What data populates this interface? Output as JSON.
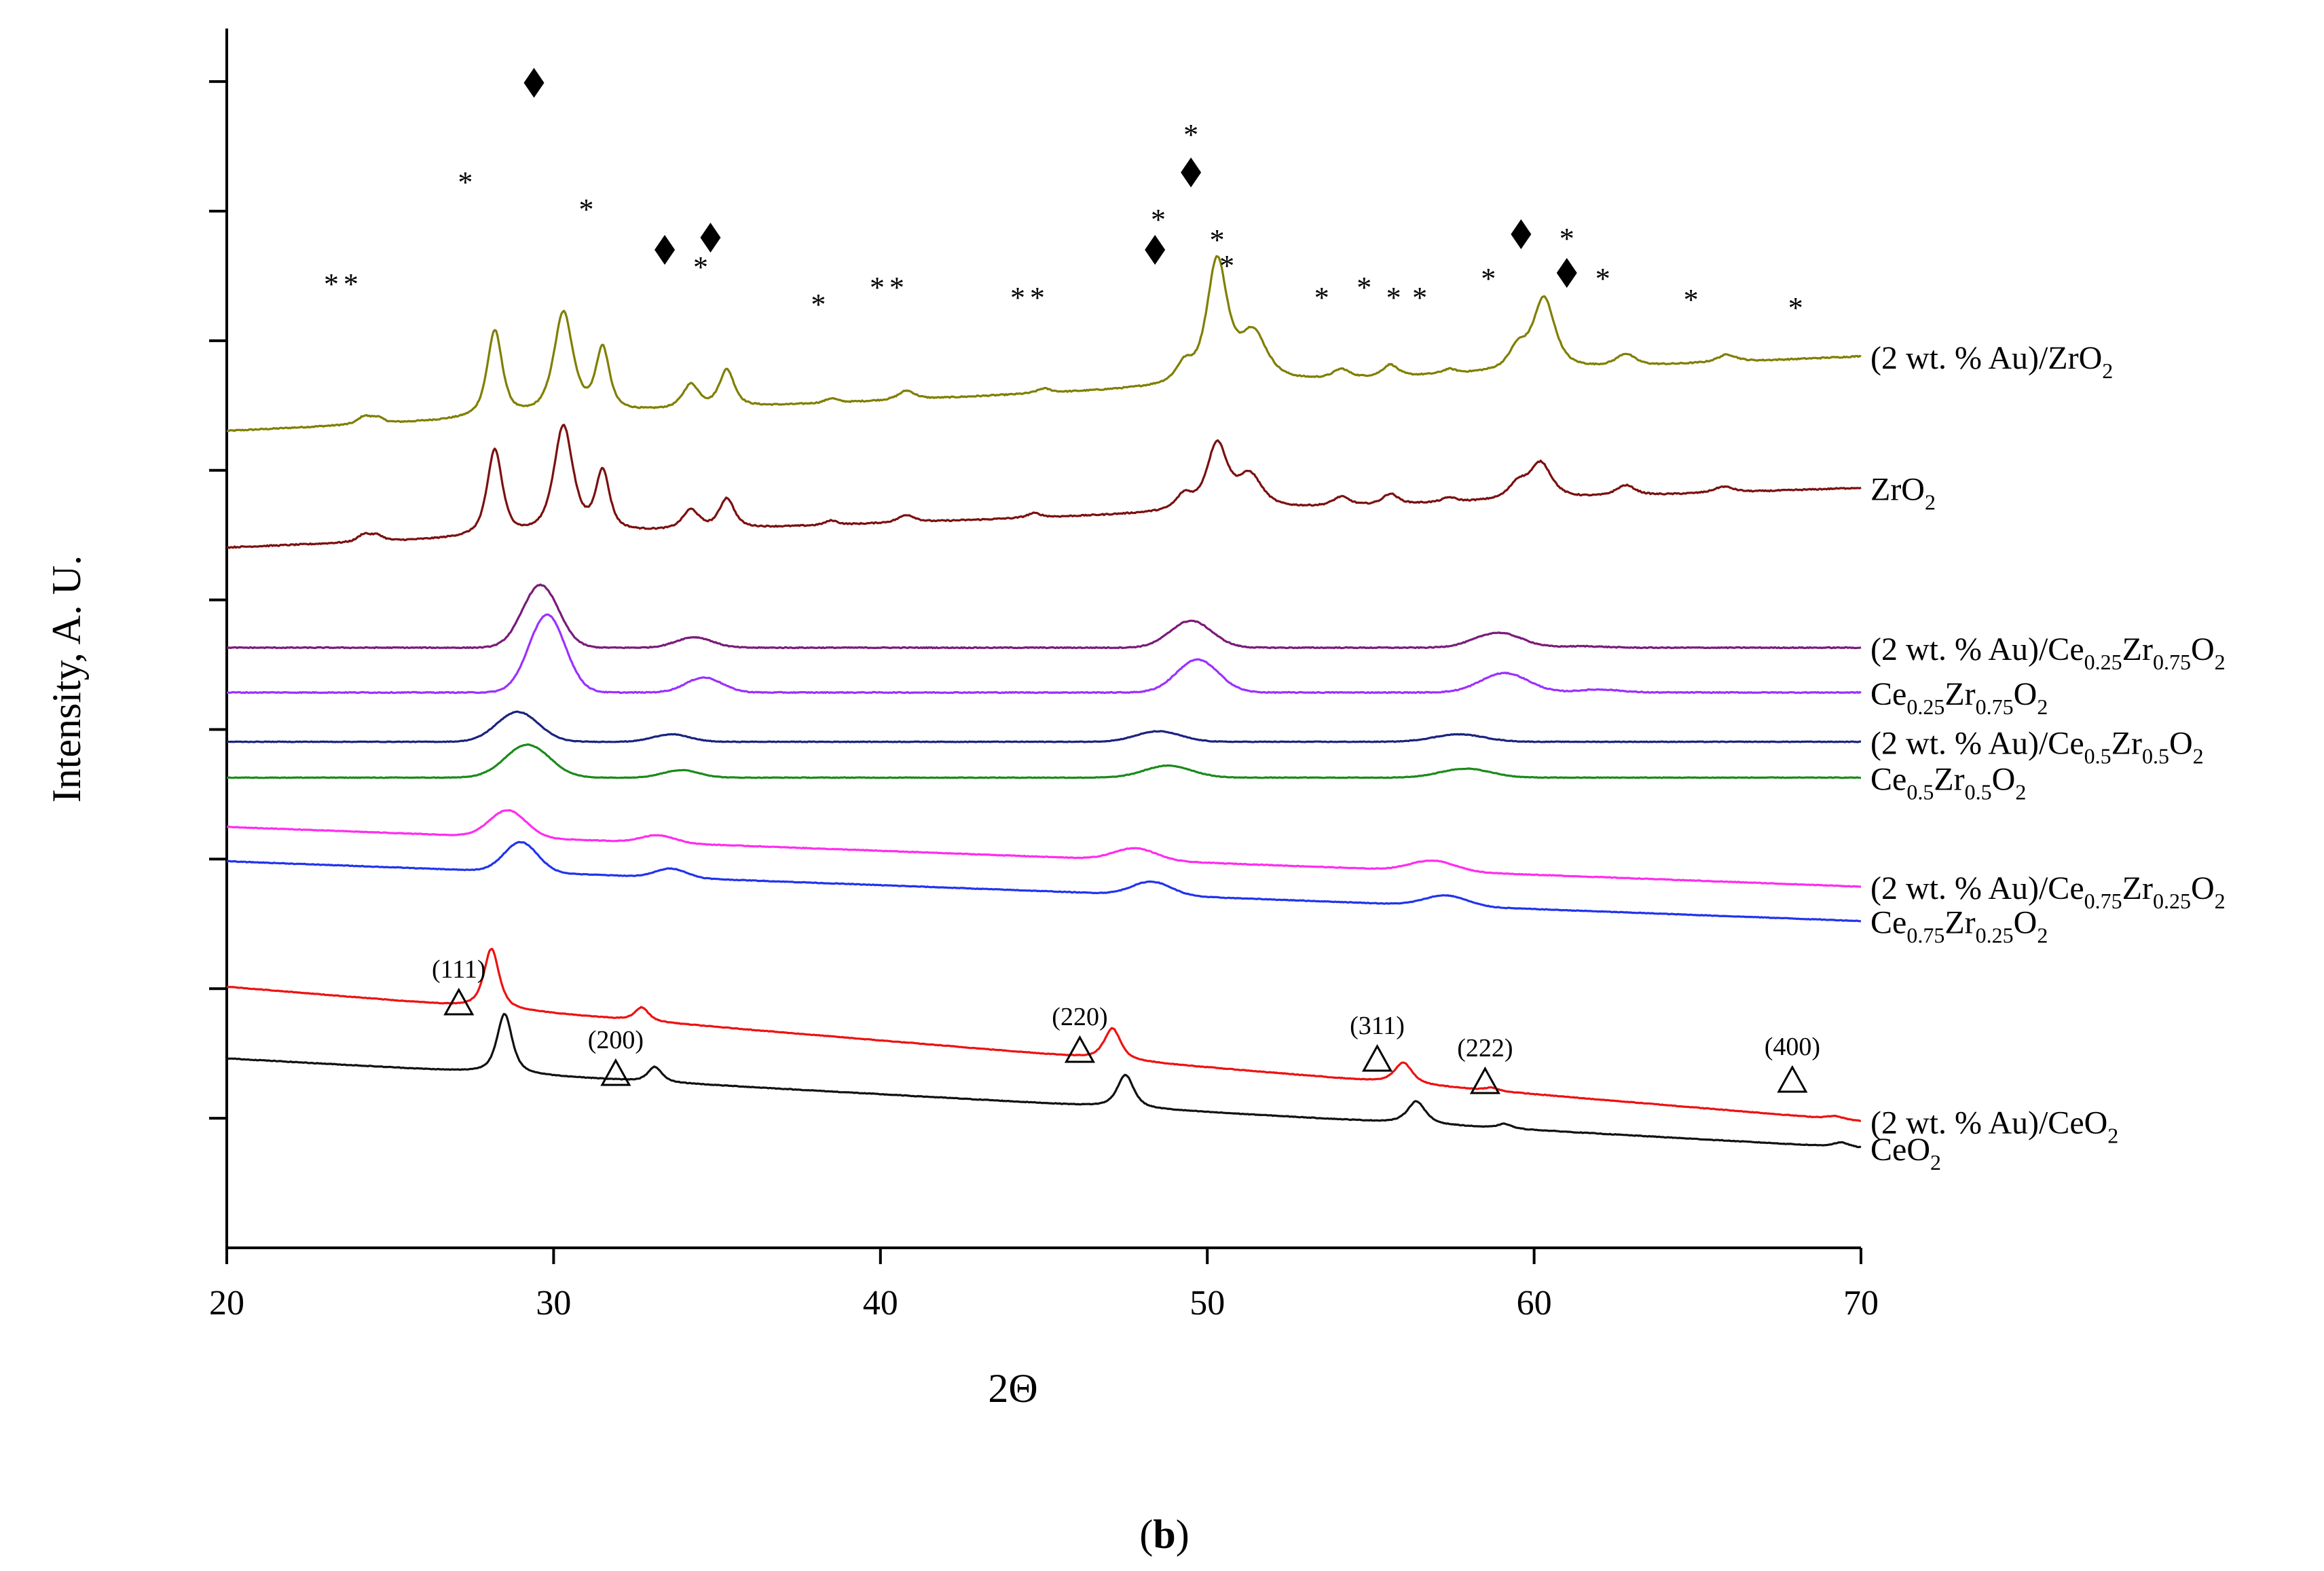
{
  "chart_data": {
    "type": "line",
    "title": "",
    "xlabel": "2Θ",
    "ylabel": "Intensity, A. U.",
    "xlim": [
      20,
      70
    ],
    "x_ticks": [
      20,
      30,
      40,
      50,
      60,
      70
    ],
    "y_tick_count": 9,
    "legend": "labels at right end of each curve",
    "panel_label": "b",
    "series": [
      {
        "name": "(2 wt. % Au)/ZrO2",
        "label": {
          "prefix": "(2 wt. % Au)/ZrO",
          "parts": [
            [
              "2",
              "sub"
            ]
          ]
        },
        "color": "#7f7f00",
        "offset": 1.75,
        "slope": 0.0005,
        "noise": 0.004,
        "sharp": true,
        "peaks": [
          [
            24.2,
            0.05,
            0.45
          ],
          [
            24.6,
            0.04,
            0.45
          ],
          [
            28.2,
            0.58,
            0.55
          ],
          [
            30.3,
            0.68,
            0.7
          ],
          [
            31.5,
            0.42,
            0.5
          ],
          [
            34.2,
            0.16,
            0.6
          ],
          [
            35.3,
            0.25,
            0.55
          ],
          [
            38.5,
            0.03,
            0.45
          ],
          [
            40.8,
            0.06,
            0.6
          ],
          [
            45.0,
            0.03,
            0.5
          ],
          [
            49.3,
            0.12,
            0.6
          ],
          [
            50.3,
            0.82,
            0.75
          ],
          [
            51.4,
            0.32,
            1.0
          ],
          [
            54.1,
            0.06,
            0.6
          ],
          [
            55.6,
            0.08,
            0.55
          ],
          [
            57.4,
            0.03,
            0.5
          ],
          [
            59.5,
            0.14,
            0.65
          ],
          [
            60.3,
            0.48,
            0.8
          ],
          [
            62.8,
            0.08,
            0.7
          ],
          [
            65.9,
            0.05,
            0.7
          ]
        ]
      },
      {
        "name": "ZrO2",
        "label": {
          "prefix": "ZrO",
          "parts": [
            [
              "2",
              "sub"
            ]
          ]
        },
        "color": "#7b1010",
        "offset": 0.97,
        "slope": 0.0004,
        "noise": 0.004,
        "sharp": true,
        "peaks": [
          [
            24.2,
            0.05,
            0.45
          ],
          [
            24.6,
            0.04,
            0.45
          ],
          [
            28.2,
            0.58,
            0.55
          ],
          [
            30.3,
            0.72,
            0.7
          ],
          [
            31.5,
            0.4,
            0.5
          ],
          [
            34.2,
            0.13,
            0.6
          ],
          [
            35.3,
            0.2,
            0.55
          ],
          [
            38.5,
            0.03,
            0.45
          ],
          [
            40.8,
            0.05,
            0.6
          ],
          [
            44.7,
            0.03,
            0.5
          ],
          [
            49.3,
            0.1,
            0.6
          ],
          [
            50.3,
            0.44,
            0.75
          ],
          [
            51.3,
            0.22,
            0.9
          ],
          [
            54.1,
            0.06,
            0.6
          ],
          [
            55.6,
            0.07,
            0.55
          ],
          [
            57.4,
            0.03,
            0.5
          ],
          [
            59.5,
            0.1,
            0.65
          ],
          [
            60.2,
            0.24,
            0.8
          ],
          [
            62.8,
            0.07,
            0.7
          ],
          [
            65.8,
            0.04,
            0.7
          ]
        ]
      },
      {
        "name": "(2 wt. % Au)/Ce0.25Zr0.75O2",
        "label": {
          "prefix": "(2 wt. % Au)/Ce",
          "parts": [
            [
              "0.25",
              "sub"
            ],
            [
              "Zr",
              "n"
            ],
            [
              "0.75",
              "sub"
            ],
            [
              "O",
              "n"
            ],
            [
              "2",
              "sub"
            ]
          ]
        },
        "color": "#7a1a7a",
        "offset": 0.3,
        "slope": 0.0,
        "noise": 0.003,
        "sharp": false,
        "peaks": [
          [
            29.6,
            0.42,
            1.3
          ],
          [
            34.3,
            0.07,
            1.3
          ],
          [
            49.5,
            0.18,
            1.5
          ],
          [
            58.9,
            0.1,
            1.7
          ],
          [
            61.5,
            0.01,
            1.5
          ]
        ]
      },
      {
        "name": "Ce0.25Zr0.75O2",
        "label": {
          "prefix": "Ce",
          "parts": [
            [
              "0.25",
              "sub"
            ],
            [
              "Zr",
              "n"
            ],
            [
              "0.75",
              "sub"
            ],
            [
              "O",
              "n"
            ],
            [
              "2",
              "sub"
            ]
          ]
        },
        "color": "#9b30ff",
        "offset": 0.0,
        "slope": 0.0,
        "noise": 0.003,
        "sharp": false,
        "peaks": [
          [
            29.8,
            0.52,
            1.3
          ],
          [
            34.6,
            0.1,
            1.3
          ],
          [
            49.7,
            0.22,
            1.5
          ],
          [
            59.1,
            0.13,
            1.7
          ],
          [
            62.0,
            0.02,
            1.5
          ]
        ]
      },
      {
        "name": "(2 wt. % Au)/Ce0.5Zr0.5O2",
        "label": {
          "prefix": "(2 wt. % Au)/Ce",
          "parts": [
            [
              "0.5",
              "sub"
            ],
            [
              "Zr",
              "n"
            ],
            [
              "0.5",
              "sub"
            ],
            [
              "O",
              "n"
            ],
            [
              "2",
              "sub"
            ]
          ]
        },
        "color": "#1a237e",
        "offset": -0.33,
        "slope": 0.0,
        "noise": 0.002,
        "sharp": false,
        "peaks": [
          [
            28.9,
            0.2,
            1.5
          ],
          [
            33.6,
            0.05,
            1.3
          ],
          [
            48.5,
            0.07,
            1.6
          ],
          [
            57.7,
            0.05,
            1.8
          ]
        ]
      },
      {
        "name": "Ce0.5Zr0.5O2",
        "label": {
          "prefix": "Ce",
          "parts": [
            [
              "0.5",
              "sub"
            ],
            [
              "Zr",
              "n"
            ],
            [
              "0.5",
              "sub"
            ],
            [
              "O",
              "n"
            ],
            [
              "2",
              "sub"
            ]
          ]
        },
        "color": "#1b8a1b",
        "offset": -0.57,
        "slope": 0.0,
        "noise": 0.002,
        "sharp": false,
        "peaks": [
          [
            29.2,
            0.22,
            1.6
          ],
          [
            33.9,
            0.05,
            1.3
          ],
          [
            48.8,
            0.08,
            1.7
          ],
          [
            57.9,
            0.06,
            1.8
          ]
        ]
      },
      {
        "name": "(2 wt. % Au)/Ce0.75Zr0.25O2",
        "label": {
          "prefix": "(2 wt. % Au)/Ce",
          "parts": [
            [
              "0.75",
              "sub"
            ],
            [
              "Zr",
              "n"
            ],
            [
              "0.25",
              "sub"
            ],
            [
              "O",
              "n"
            ],
            [
              "2",
              "sub"
            ]
          ]
        },
        "color": "#ff2cf0",
        "offset": -0.9,
        "slope": -0.0004,
        "noise": 0.002,
        "sharp": false,
        "peaks": [
          [
            28.6,
            0.18,
            1.3
          ],
          [
            33.2,
            0.05,
            1.2
          ],
          [
            47.8,
            0.08,
            1.5
          ],
          [
            56.9,
            0.07,
            1.6
          ]
        ]
      },
      {
        "name": "Ce0.75Zr0.25O2",
        "label": {
          "prefix": "Ce",
          "parts": [
            [
              "0.75",
              "sub"
            ],
            [
              "Zr",
              "n"
            ],
            [
              "0.25",
              "sub"
            ],
            [
              "O",
              "n"
            ],
            [
              "2",
              "sub"
            ]
          ]
        },
        "color": "#2233ee",
        "offset": -1.13,
        "slope": -0.0004,
        "noise": 0.002,
        "sharp": false,
        "peaks": [
          [
            29.0,
            0.2,
            1.2
          ],
          [
            33.6,
            0.06,
            1.1
          ],
          [
            48.3,
            0.09,
            1.4
          ],
          [
            57.3,
            0.07,
            1.5
          ]
        ]
      },
      {
        "name": "(2 wt. % Au)/CeO2",
        "label": {
          "prefix": "(2 wt. % Au)/CeO",
          "parts": [
            [
              "2",
              "sub"
            ]
          ]
        },
        "color": "#ee1111",
        "offset": -1.97,
        "slope": -0.0009,
        "noise": 0.002,
        "sharp": true,
        "peaks": [
          [
            28.1,
            0.4,
            0.55
          ],
          [
            32.7,
            0.09,
            0.5
          ],
          [
            47.1,
            0.21,
            0.6
          ],
          [
            56.0,
            0.14,
            0.65
          ],
          [
            58.7,
            0.02,
            0.5
          ],
          [
            69.2,
            0.02,
            0.6
          ]
        ]
      },
      {
        "name": "CeO2",
        "label": {
          "prefix": "CeO",
          "parts": [
            [
              "2",
              "sub"
            ]
          ]
        },
        "color": "#111111",
        "offset": -2.45,
        "slope": -0.0006,
        "noise": 0.002,
        "sharp": true,
        "peaks": [
          [
            28.5,
            0.4,
            0.55
          ],
          [
            33.1,
            0.1,
            0.5
          ],
          [
            47.5,
            0.22,
            0.6
          ],
          [
            56.4,
            0.15,
            0.65
          ],
          [
            59.1,
            0.03,
            0.5
          ],
          [
            69.4,
            0.03,
            0.6
          ]
        ]
      }
    ],
    "annotations": {
      "miller_indices": [
        {
          "label": "(111)",
          "x": 27.1
        },
        {
          "label": "(200)",
          "x": 31.9
        },
        {
          "label": "(220)",
          "x": 46.1
        },
        {
          "label": "(311)",
          "x": 55.2
        },
        {
          "label": "(222)",
          "x": 58.5
        },
        {
          "label": "(400)",
          "x": 67.9
        }
      ],
      "star_symbol": "*",
      "star_positions": [
        23.2,
        23.8,
        27.3,
        31.0,
        34.5,
        38.1,
        39.9,
        40.5,
        44.2,
        44.8,
        48.5,
        49.5,
        50.3,
        50.6,
        53.5,
        54.8,
        55.7,
        56.5,
        58.6,
        61.0,
        62.1,
        64.8,
        68.0
      ],
      "diamond_positions": [
        29.4,
        33.4,
        34.8,
        48.4,
        49.5,
        59.6,
        61.0
      ]
    }
  }
}
